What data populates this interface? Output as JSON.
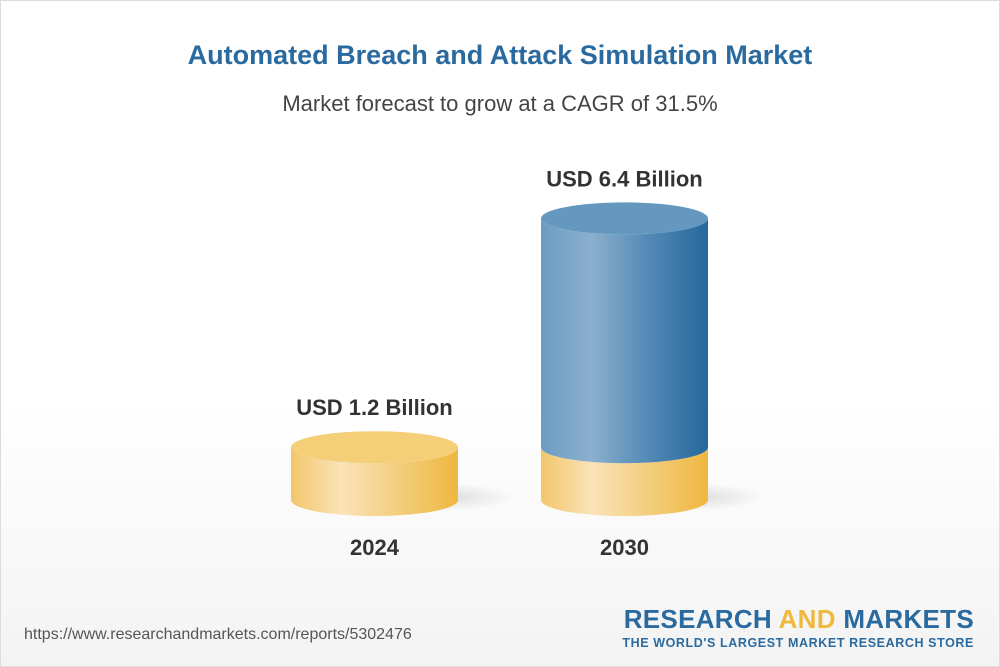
{
  "chart_data": {
    "type": "bar",
    "style": "3d-cylinder",
    "title": "Automated Breach and Attack Simulation Market",
    "subtitle": "Market forecast to grow at a CAGR of 31.5%",
    "categories": [
      "2024",
      "2030"
    ],
    "values": [
      1.2,
      6.4
    ],
    "unit": "USD Billion",
    "data_labels": [
      "USD 1.2 Billion",
      "USD 6.4 Billion"
    ],
    "xlabel": "",
    "ylabel": "",
    "grid": false,
    "colors": {
      "base": "#f0b83c",
      "growth": "#2a6a9f",
      "title": "#2a6a9f"
    }
  },
  "footer": {
    "url": "https://www.researchandmarkets.com/reports/5302476",
    "logo_word1": "RESEARCH",
    "logo_word2": "AND",
    "logo_word3": "MARKETS",
    "logo_tagline": "THE WORLD'S LARGEST MARKET RESEARCH STORE"
  }
}
